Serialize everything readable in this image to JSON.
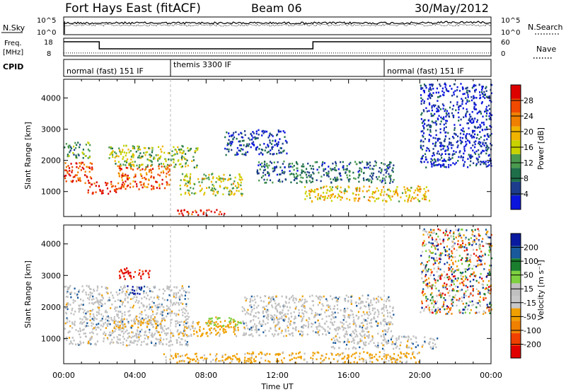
{
  "header": {
    "station": "Fort Hays East (fitACF)",
    "beam": "Beam 06",
    "date": "30/May/2012"
  },
  "colors": {
    "power_scale": [
      "#0a14dc",
      "#1e3c8c",
      "#1e6e4a",
      "#4a9a4e",
      "#c8d200",
      "#f0b400",
      "#f08000",
      "#f04a00",
      "#dc0000"
    ],
    "velocity_scale": [
      "#0a1aa0",
      "#1a5a9c",
      "#1a7e2e",
      "#7ed040",
      "#c0c0c0",
      "#c8c8c8",
      "#f0a000",
      "#f08000",
      "#f04000",
      "#e00000"
    ],
    "line": "#000000",
    "dashed_marker": "#bbbbbb"
  },
  "chart_data": [
    {
      "type": "line",
      "name": "noise-panel",
      "left_label": "N.Sky",
      "right_label": "N.Search",
      "left_ticks": [
        "10^5",
        "10^0"
      ],
      "right_ticks": [
        "10^5",
        "10^0"
      ],
      "x_range_hours": [
        0,
        24
      ]
    },
    {
      "type": "line",
      "name": "frequency-panel",
      "left_label_line1": "Freq.",
      "left_label_line2": "[MHz]",
      "right_label": "Nave",
      "left_ticks": [
        "18",
        "8"
      ],
      "right_ticks": [
        "60",
        "0"
      ],
      "x_range_hours": [
        0,
        24
      ],
      "freq_segments": [
        {
          "t0": 0,
          "t1": 2,
          "value": 17
        },
        {
          "t0": 2,
          "t1": 14,
          "value": 11
        },
        {
          "t0": 14,
          "t1": 24,
          "value": 17
        }
      ],
      "nave_level": 10
    },
    {
      "type": "table",
      "name": "cpid-strip",
      "label": "CPID",
      "segments": [
        {
          "t0": 0,
          "t1": 6,
          "text": "normal (fast) 151 IF"
        },
        {
          "t0": 6,
          "t1": 18,
          "text": "themis 3300 IF"
        },
        {
          "t0": 18,
          "t1": 24,
          "text": "normal (fast) 151 IF"
        }
      ]
    },
    {
      "type": "heatmap",
      "name": "power-panel",
      "ylabel": "Slant Range [km]",
      "ylim": [
        200,
        4600
      ],
      "yticks": [
        1000,
        2000,
        3000,
        4000
      ],
      "x_range_hours": [
        0,
        24
      ],
      "colorbar_label": "Power [dB]",
      "colorbar_ticks": [
        4,
        8,
        12,
        16,
        20,
        24,
        28
      ],
      "colorbar_range": [
        0,
        32
      ],
      "features": [
        {
          "t0": 0.0,
          "t1": 1.6,
          "r0": 1300,
          "r1": 2000,
          "level": 0.85
        },
        {
          "t0": 1.3,
          "t1": 3.0,
          "r0": 950,
          "r1": 1350,
          "level": 0.9
        },
        {
          "t0": 3.0,
          "t1": 6.0,
          "r0": 1100,
          "r1": 1900,
          "level": 0.8
        },
        {
          "t0": 2.5,
          "t1": 7.5,
          "r0": 1800,
          "r1": 2500,
          "level": 0.45
        },
        {
          "t0": 6.5,
          "t1": 10.0,
          "r0": 900,
          "r1": 1600,
          "level": 0.5
        },
        {
          "t0": 6.3,
          "t1": 9.0,
          "r0": 250,
          "r1": 450,
          "level": 0.9
        },
        {
          "t0": 10.8,
          "t1": 18.5,
          "r0": 1300,
          "r1": 2000,
          "level": 0.25
        },
        {
          "t0": 13.5,
          "t1": 20.5,
          "r0": 700,
          "r1": 1200,
          "level": 0.6
        },
        {
          "t0": 0.0,
          "t1": 1.5,
          "r0": 2100,
          "r1": 2600,
          "level": 0.35
        },
        {
          "t0": 9.0,
          "t1": 12.5,
          "r0": 2200,
          "r1": 3000,
          "level": 0.15
        },
        {
          "t0": 20.0,
          "t1": 24.0,
          "r0": 1800,
          "r1": 4500,
          "level": 0.1
        }
      ]
    },
    {
      "type": "heatmap",
      "name": "velocity-panel",
      "ylabel": "Slant Range [km]",
      "xlabel": "Time UT",
      "ylim": [
        200,
        4600
      ],
      "yticks": [
        1000,
        2000,
        3000,
        4000
      ],
      "x_range_hours": [
        0,
        24
      ],
      "xticks": [
        "00:00",
        "04:00",
        "08:00",
        "12:00",
        "16:00",
        "20:00",
        "00:00"
      ],
      "colorbar_label": "Velocity [m s⁻¹]",
      "colorbar_ticks": [
        200,
        100,
        50,
        15,
        -15,
        -50,
        -100,
        -200
      ],
      "features": [
        {
          "t0": 0.0,
          "t1": 7.0,
          "r0": 800,
          "r1": 2700,
          "level": "gray"
        },
        {
          "t0": 2.8,
          "t1": 5.5,
          "r0": 1350,
          "r1": 1650,
          "level": "orange"
        },
        {
          "t0": 6.5,
          "t1": 9.8,
          "r0": 1100,
          "r1": 1600,
          "level": "orange"
        },
        {
          "t0": 8.0,
          "t1": 10.0,
          "r0": 1400,
          "r1": 1700,
          "level": "green"
        },
        {
          "t0": 5.5,
          "t1": 10.5,
          "r0": 250,
          "r1": 550,
          "level": "orange"
        },
        {
          "t0": 10.0,
          "t1": 18.5,
          "r0": 1100,
          "r1": 2400,
          "level": "gray"
        },
        {
          "t0": 15.0,
          "t1": 21.0,
          "r0": 700,
          "r1": 1100,
          "level": "gray"
        },
        {
          "t0": 3.0,
          "t1": 4.8,
          "r0": 2900,
          "r1": 3300,
          "level": "red"
        },
        {
          "t0": 3.5,
          "t1": 4.5,
          "r0": 2400,
          "r1": 2700,
          "level": "blue"
        },
        {
          "t0": 10.0,
          "t1": 20.0,
          "r0": 250,
          "r1": 600,
          "level": "orange"
        },
        {
          "t0": 20.0,
          "t1": 24.0,
          "r0": 1800,
          "r1": 4500,
          "level": "mixed"
        }
      ]
    }
  ]
}
